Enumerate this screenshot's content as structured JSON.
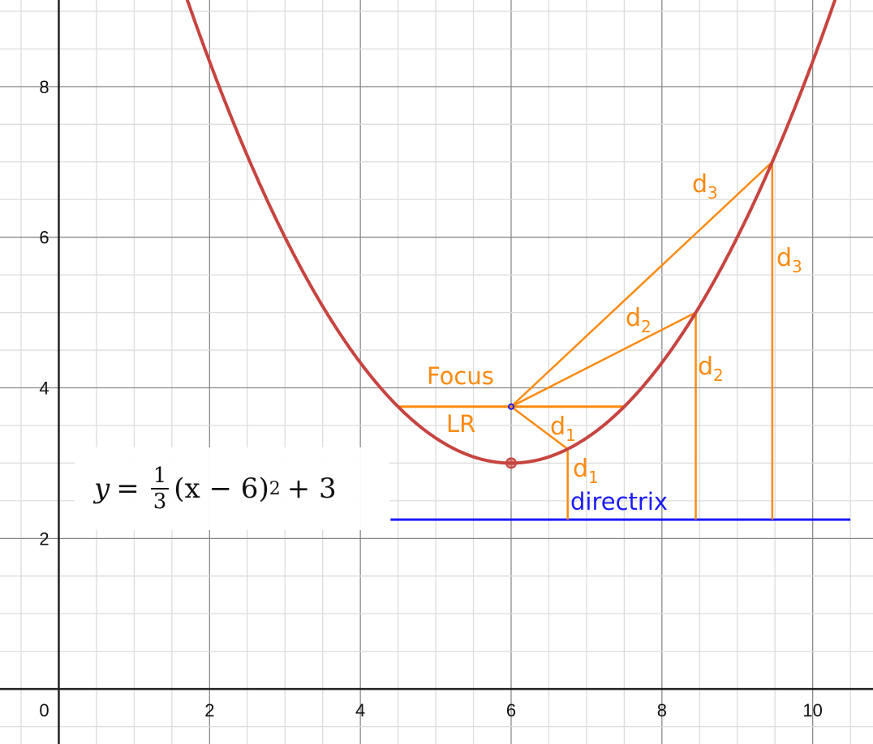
{
  "chart_data": {
    "type": "line",
    "xlim": [
      -0.78,
      10.8
    ],
    "ylim": [
      -0.73,
      9.15
    ],
    "grid": true,
    "major_step": 2,
    "minor_step": 0.5,
    "x_ticks": [
      "0",
      "2",
      "4",
      "6",
      "8",
      "10"
    ],
    "y_ticks": [
      "2",
      "4",
      "6",
      "8"
    ],
    "equation": {
      "lhs": "y",
      "eq": "=",
      "num": "1",
      "den": "3",
      "paren": "(x − 6)",
      "exp": "2",
      "rest": "+ 3"
    },
    "parabola": {
      "a": 0.3333,
      "h": 6,
      "k": 3,
      "color": "#c74440"
    },
    "vertex": [
      6,
      3
    ],
    "focus": [
      6,
      3.75
    ],
    "directrix": {
      "y": 2.25,
      "x_range": [
        4.4,
        10.5
      ],
      "color": "#1a1aff",
      "label": "directrix"
    },
    "latus_rectum": {
      "x_range": [
        4.5,
        7.5
      ],
      "y": 3.75,
      "label": "LR"
    },
    "focus_label": "Focus",
    "distance_points": [
      {
        "x": 6.75,
        "y": 3.1875,
        "label": "d",
        "sub": "1"
      },
      {
        "x": 8.449,
        "y": 5,
        "label": "d",
        "sub": "2"
      },
      {
        "x": 9.464,
        "y": 7,
        "label": "d",
        "sub": "3"
      }
    ],
    "accent_color": "#fb8a10"
  }
}
